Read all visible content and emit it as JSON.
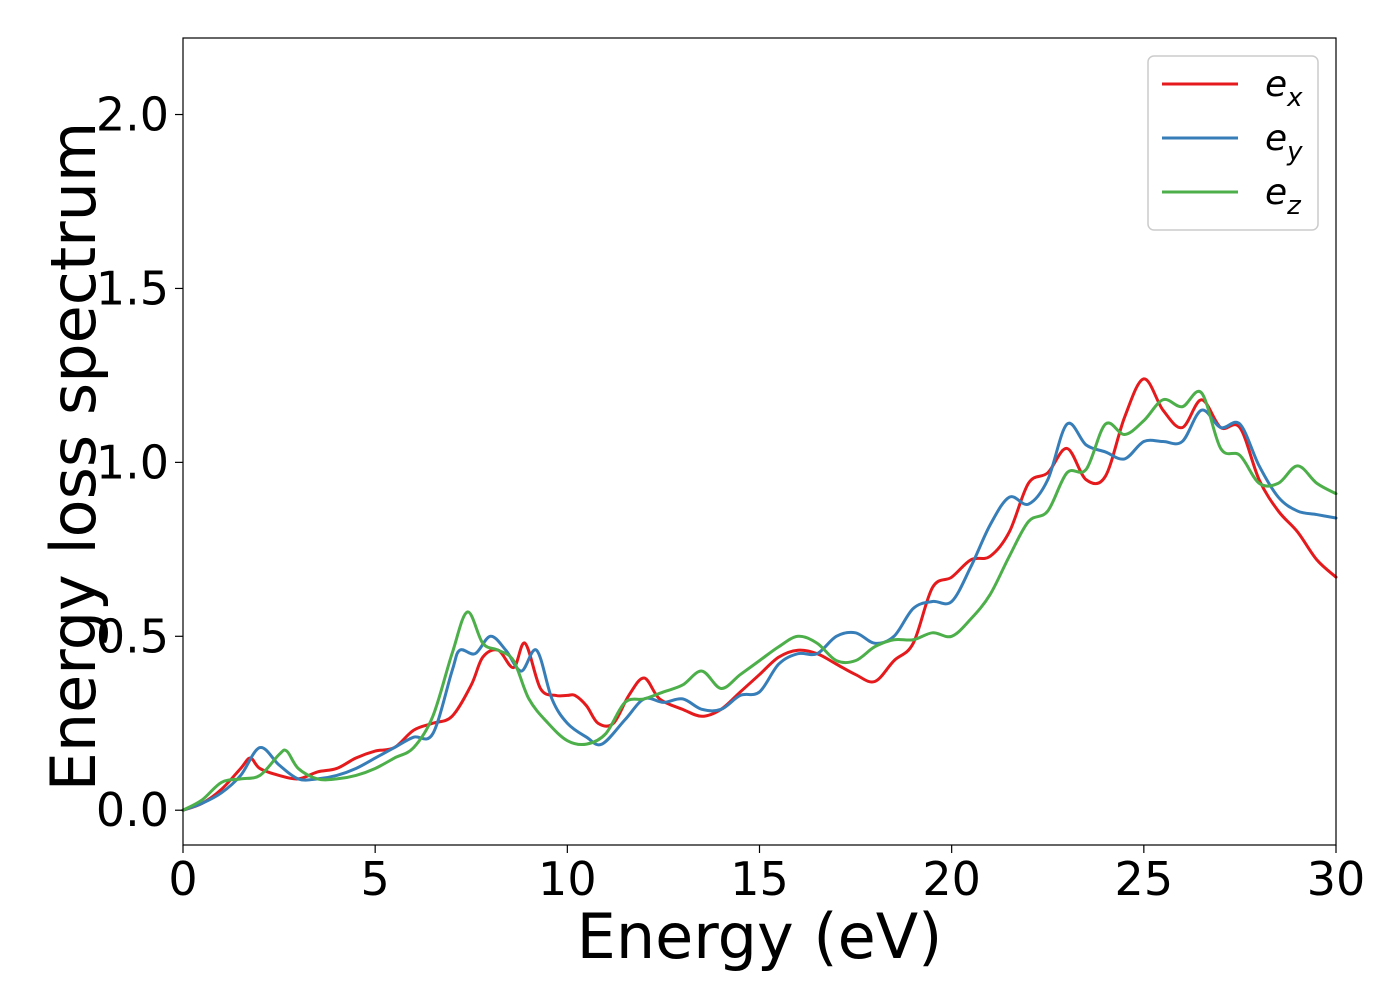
{
  "chart_data": {
    "type": "line",
    "xlabel": "Energy (eV)",
    "ylabel": "Energy loss spectrum",
    "xlim": [
      0,
      30
    ],
    "ylim": [
      -0.1,
      2.22
    ],
    "xticks": [
      "0",
      "5",
      "10",
      "15",
      "20",
      "25",
      "30"
    ],
    "yticks": [
      "0.0",
      "0.5",
      "1.0",
      "1.5",
      "2.0"
    ],
    "grid": false,
    "legend_position": "top-right",
    "series": [
      {
        "name": "e",
        "subscript": "x",
        "color": "#e41a1c",
        "points": [
          [
            0,
            0
          ],
          [
            0.5,
            0.02
          ],
          [
            1,
            0.06
          ],
          [
            1.5,
            0.12
          ],
          [
            1.75,
            0.15
          ],
          [
            2,
            0.12
          ],
          [
            2.5,
            0.1
          ],
          [
            3,
            0.09
          ],
          [
            3.5,
            0.11
          ],
          [
            4,
            0.12
          ],
          [
            4.5,
            0.15
          ],
          [
            5,
            0.17
          ],
          [
            5.5,
            0.18
          ],
          [
            6,
            0.23
          ],
          [
            6.5,
            0.25
          ],
          [
            7,
            0.27
          ],
          [
            7.5,
            0.36
          ],
          [
            7.8,
            0.44
          ],
          [
            8.2,
            0.46
          ],
          [
            8.6,
            0.41
          ],
          [
            8.9,
            0.48
          ],
          [
            9.3,
            0.35
          ],
          [
            9.7,
            0.33
          ],
          [
            10,
            0.33
          ],
          [
            10.2,
            0.33
          ],
          [
            10.5,
            0.3
          ],
          [
            10.8,
            0.25
          ],
          [
            11.2,
            0.25
          ],
          [
            11.6,
            0.33
          ],
          [
            12,
            0.38
          ],
          [
            12.4,
            0.32
          ],
          [
            13,
            0.29
          ],
          [
            13.5,
            0.27
          ],
          [
            14,
            0.29
          ],
          [
            14.5,
            0.34
          ],
          [
            15,
            0.39
          ],
          [
            15.5,
            0.44
          ],
          [
            16,
            0.46
          ],
          [
            16.5,
            0.45
          ],
          [
            17,
            0.42
          ],
          [
            17.5,
            0.39
          ],
          [
            18,
            0.37
          ],
          [
            18.5,
            0.43
          ],
          [
            19,
            0.48
          ],
          [
            19.5,
            0.64
          ],
          [
            20,
            0.67
          ],
          [
            20.5,
            0.72
          ],
          [
            21,
            0.73
          ],
          [
            21.5,
            0.8
          ],
          [
            22,
            0.94
          ],
          [
            22.5,
            0.97
          ],
          [
            23,
            1.04
          ],
          [
            23.5,
            0.95
          ],
          [
            24,
            0.96
          ],
          [
            24.5,
            1.13
          ],
          [
            25,
            1.24
          ],
          [
            25.5,
            1.15
          ],
          [
            26,
            1.1
          ],
          [
            26.5,
            1.18
          ],
          [
            27,
            1.1
          ],
          [
            27.5,
            1.1
          ],
          [
            28,
            0.95
          ],
          [
            28.5,
            0.86
          ],
          [
            29,
            0.8
          ],
          [
            29.5,
            0.72
          ],
          [
            30,
            0.67
          ]
        ]
      },
      {
        "name": "e",
        "subscript": "y",
        "color": "#377eb8",
        "points": [
          [
            0,
            0
          ],
          [
            0.5,
            0.02
          ],
          [
            1,
            0.05
          ],
          [
            1.5,
            0.1
          ],
          [
            2,
            0.18
          ],
          [
            2.5,
            0.13
          ],
          [
            3,
            0.09
          ],
          [
            3.5,
            0.09
          ],
          [
            4,
            0.1
          ],
          [
            4.5,
            0.12
          ],
          [
            5,
            0.15
          ],
          [
            5.5,
            0.18
          ],
          [
            6,
            0.21
          ],
          [
            6.5,
            0.22
          ],
          [
            7,
            0.4
          ],
          [
            7.2,
            0.46
          ],
          [
            7.6,
            0.45
          ],
          [
            8,
            0.5
          ],
          [
            8.4,
            0.46
          ],
          [
            8.8,
            0.4
          ],
          [
            9.2,
            0.46
          ],
          [
            9.6,
            0.32
          ],
          [
            10,
            0.25
          ],
          [
            10.5,
            0.21
          ],
          [
            10.9,
            0.19
          ],
          [
            11.5,
            0.26
          ],
          [
            12,
            0.32
          ],
          [
            12.5,
            0.31
          ],
          [
            13,
            0.32
          ],
          [
            13.5,
            0.29
          ],
          [
            14,
            0.29
          ],
          [
            14.5,
            0.33
          ],
          [
            15,
            0.34
          ],
          [
            15.5,
            0.42
          ],
          [
            16,
            0.45
          ],
          [
            16.5,
            0.45
          ],
          [
            17,
            0.5
          ],
          [
            17.5,
            0.51
          ],
          [
            18,
            0.48
          ],
          [
            18.5,
            0.5
          ],
          [
            19,
            0.58
          ],
          [
            19.5,
            0.6
          ],
          [
            20,
            0.6
          ],
          [
            20.5,
            0.7
          ],
          [
            21,
            0.82
          ],
          [
            21.5,
            0.9
          ],
          [
            22,
            0.88
          ],
          [
            22.5,
            0.95
          ],
          [
            23,
            1.11
          ],
          [
            23.5,
            1.05
          ],
          [
            24,
            1.03
          ],
          [
            24.5,
            1.01
          ],
          [
            25,
            1.06
          ],
          [
            25.5,
            1.06
          ],
          [
            26,
            1.06
          ],
          [
            26.5,
            1.15
          ],
          [
            27,
            1.1
          ],
          [
            27.5,
            1.11
          ],
          [
            28,
            0.99
          ],
          [
            28.5,
            0.9
          ],
          [
            29,
            0.86
          ],
          [
            29.5,
            0.85
          ],
          [
            30,
            0.84
          ]
        ]
      },
      {
        "name": "e",
        "subscript": "z",
        "color": "#4daf4a",
        "points": [
          [
            0,
            0
          ],
          [
            0.5,
            0.03
          ],
          [
            1,
            0.08
          ],
          [
            1.5,
            0.09
          ],
          [
            2,
            0.1
          ],
          [
            2.5,
            0.16
          ],
          [
            2.7,
            0.17
          ],
          [
            3,
            0.12
          ],
          [
            3.5,
            0.09
          ],
          [
            4,
            0.09
          ],
          [
            4.5,
            0.1
          ],
          [
            5,
            0.12
          ],
          [
            5.5,
            0.15
          ],
          [
            6,
            0.18
          ],
          [
            6.5,
            0.27
          ],
          [
            7,
            0.45
          ],
          [
            7.4,
            0.57
          ],
          [
            7.8,
            0.48
          ],
          [
            8.2,
            0.46
          ],
          [
            8.6,
            0.43
          ],
          [
            9,
            0.32
          ],
          [
            9.5,
            0.25
          ],
          [
            10,
            0.2
          ],
          [
            10.5,
            0.19
          ],
          [
            11,
            0.22
          ],
          [
            11.5,
            0.31
          ],
          [
            12,
            0.32
          ],
          [
            12.5,
            0.34
          ],
          [
            13,
            0.36
          ],
          [
            13.5,
            0.4
          ],
          [
            14,
            0.35
          ],
          [
            14.5,
            0.39
          ],
          [
            15,
            0.43
          ],
          [
            15.5,
            0.47
          ],
          [
            16,
            0.5
          ],
          [
            16.5,
            0.48
          ],
          [
            17,
            0.43
          ],
          [
            17.5,
            0.43
          ],
          [
            18,
            0.47
          ],
          [
            18.5,
            0.49
          ],
          [
            19,
            0.49
          ],
          [
            19.5,
            0.51
          ],
          [
            20,
            0.5
          ],
          [
            20.5,
            0.55
          ],
          [
            21,
            0.62
          ],
          [
            21.5,
            0.73
          ],
          [
            22,
            0.83
          ],
          [
            22.5,
            0.86
          ],
          [
            23,
            0.97
          ],
          [
            23.5,
            0.98
          ],
          [
            24,
            1.11
          ],
          [
            24.5,
            1.08
          ],
          [
            25,
            1.12
          ],
          [
            25.5,
            1.18
          ],
          [
            26,
            1.16
          ],
          [
            26.5,
            1.2
          ],
          [
            27,
            1.04
          ],
          [
            27.5,
            1.02
          ],
          [
            28,
            0.94
          ],
          [
            28.5,
            0.94
          ],
          [
            29,
            0.99
          ],
          [
            29.5,
            0.94
          ],
          [
            30,
            0.91
          ]
        ]
      }
    ]
  }
}
